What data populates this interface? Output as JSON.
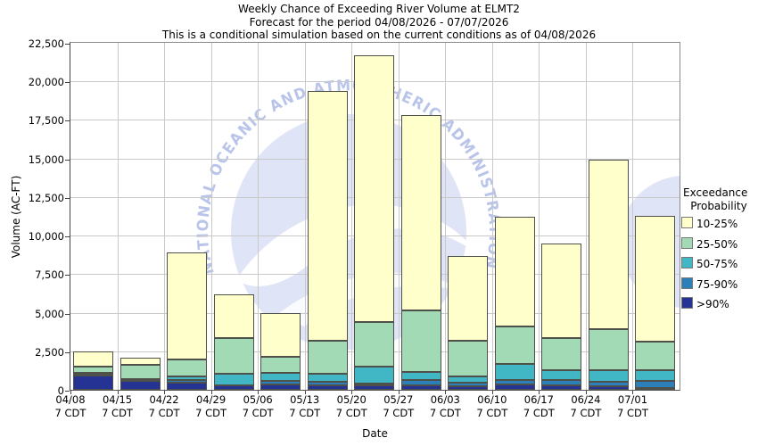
{
  "header": {
    "title": "Weekly Chance of Exceeding River Volume at ELMT2",
    "subtitle": "Forecast for the period 04/08/2026 - 07/07/2026",
    "note": "This is a conditional simulation based on the current conditions as of 04/08/2026"
  },
  "watermark": {
    "text": "NATIONAL OCEANIC AND ATMOSPHERIC ADMINISTRATION",
    "circle_color": "#dfe4f7",
    "text_color": "#b9c4ea"
  },
  "legend": {
    "title_lines": [
      "Exceedance",
      "Probability"
    ],
    "entries": [
      {
        "label": "10-25%",
        "color": "#ffffcc"
      },
      {
        "label": "25-50%",
        "color": "#a1dab4"
      },
      {
        "label": "50-75%",
        "color": "#41b6c4"
      },
      {
        "label": "75-90%",
        "color": "#2c7fb8"
      },
      {
        "label": ">90%",
        "color": "#253494"
      }
    ]
  },
  "chart_data": {
    "type": "bar",
    "stacked": true,
    "title": "Weekly Chance of Exceeding River Volume at ELMT2",
    "xlabel": "Date",
    "ylabel": "Volume (AC-FT)",
    "ylim": [
      0,
      22500
    ],
    "ytick_step": 2500,
    "ytick_labels": [
      "0",
      "2,500",
      "5,000",
      "7,500",
      "10,000",
      "12,500",
      "15,000",
      "17,500",
      "20,000",
      "22,500"
    ],
    "grid": true,
    "legend_position": "right",
    "categories": [
      "04/08",
      "04/15",
      "04/22",
      "04/29",
      "05/06",
      "05/13",
      "05/20",
      "05/27",
      "06/03",
      "06/10",
      "06/17",
      "06/24",
      "07/01"
    ],
    "category_time_suffix": "7 CDT",
    "series": [
      {
        "name": ">90%",
        "color": "#253494",
        "values": [
          950,
          580,
          470,
          270,
          370,
          300,
          270,
          270,
          220,
          330,
          280,
          230,
          130
        ]
      },
      {
        "name": "75-90%",
        "color": "#2c7fb8",
        "values": [
          50,
          50,
          170,
          40,
          195,
          200,
          130,
          390,
          230,
          290,
          370,
          280,
          435
        ]
      },
      {
        "name": "50-75%",
        "color": "#41b6c4",
        "values": [
          100,
          50,
          215,
          740,
          525,
          550,
          1100,
          490,
          430,
          1030,
          600,
          770,
          685
        ]
      },
      {
        "name": "25-50%",
        "color": "#a1dab4",
        "values": [
          400,
          920,
          1095,
          2300,
          1060,
          2150,
          2900,
          4000,
          2320,
          2450,
          2125,
          2670,
          1900
        ]
      },
      {
        "name": "10-25%",
        "color": "#ffffcc",
        "values": [
          1000,
          500,
          6950,
          2850,
          2850,
          16200,
          17300,
          12650,
          5500,
          7100,
          6125,
          10950,
          8150
        ]
      }
    ],
    "bar_totals": [
      2500,
      2100,
      8900,
      6200,
      5000,
      19400,
      21700,
      17800,
      8700,
      11200,
      9500,
      14900,
      11300
    ]
  },
  "colors": {
    "grid": "#c9c9c9",
    "plot_border": "#8a8a8a",
    "bar_border": "#50504a"
  }
}
